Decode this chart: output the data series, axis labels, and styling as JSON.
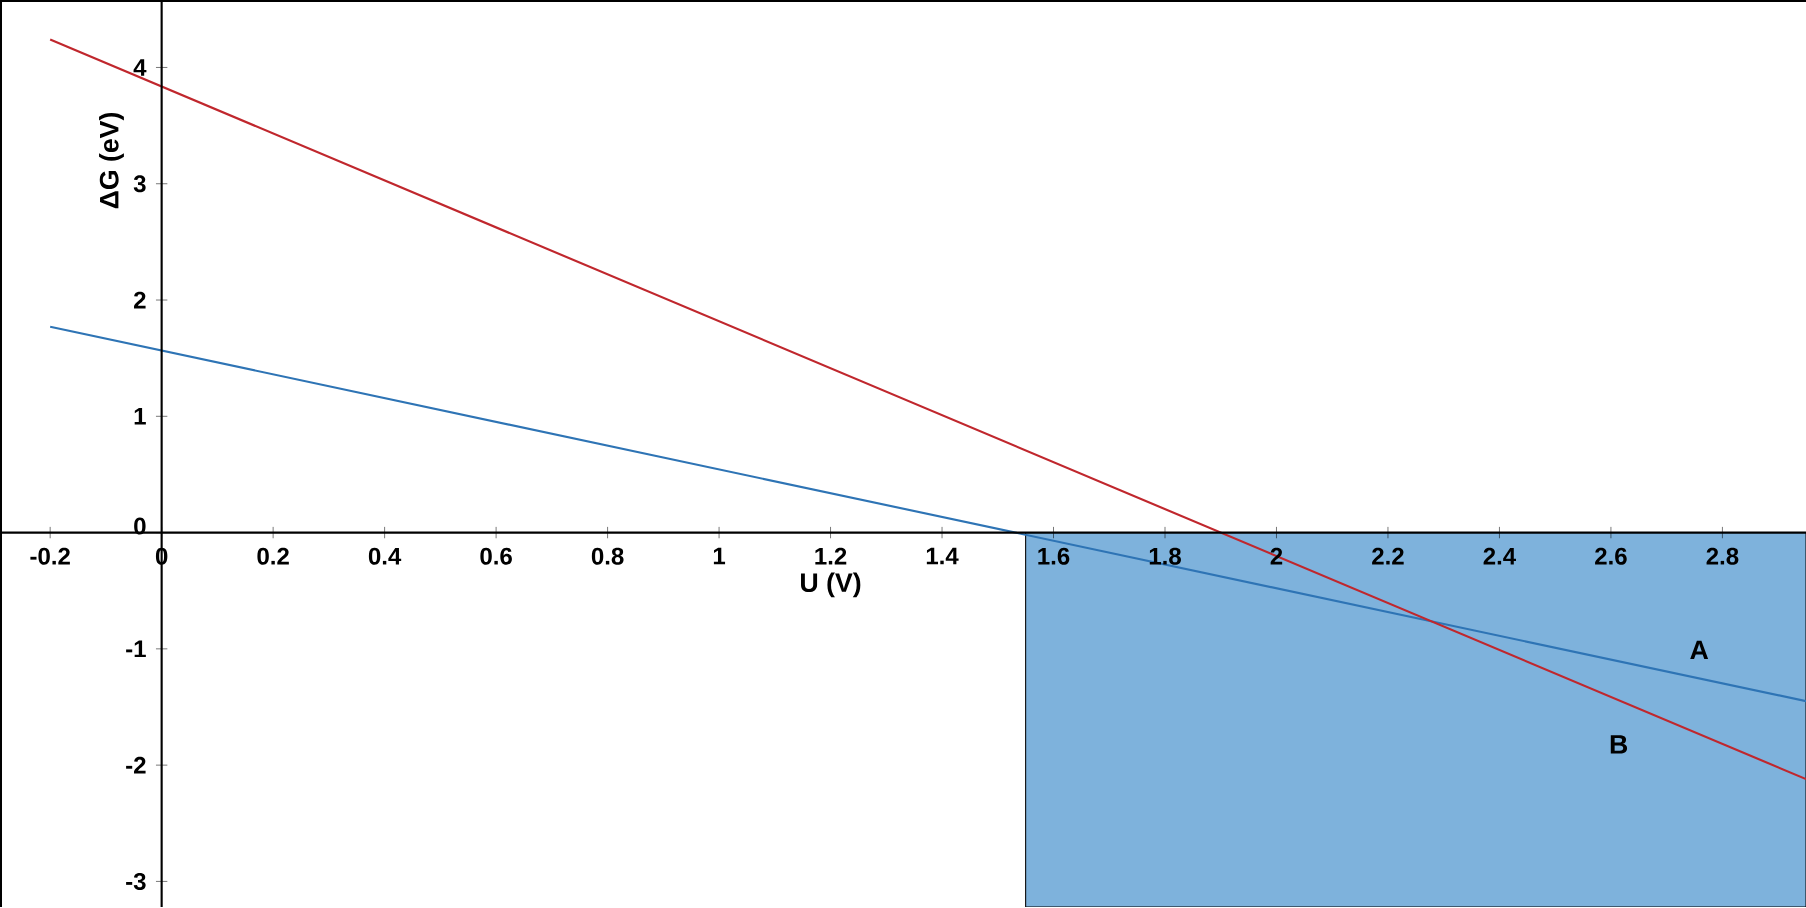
{
  "chart_data": {
    "type": "line",
    "xlabel": "U (V)",
    "ylabel": "ΔG (eV)",
    "xlim": [
      -0.29,
      2.95
    ],
    "ylim": [
      -3.22,
      4.58
    ],
    "xticks": [
      -0.2,
      0,
      0.2,
      0.4,
      0.6,
      0.8,
      1,
      1.2,
      1.4,
      1.6,
      1.8,
      2,
      2.2,
      2.4,
      2.6,
      2.8
    ],
    "yticks": [
      -3,
      -2,
      -1,
      0,
      1,
      2,
      3,
      4
    ],
    "x": [
      -0.2,
      2.95
    ],
    "series": [
      {
        "name": "A",
        "color": "#2e74b5",
        "values": [
          1.77,
          -1.45
        ]
      },
      {
        "name": "B",
        "color": "#c0272d",
        "values": [
          4.24,
          -2.12
        ]
      }
    ],
    "bands": [
      {
        "axis": "x",
        "from": 1.55,
        "to": 2.95,
        "color": "#7eb2dc"
      }
    ],
    "grid": false
  }
}
